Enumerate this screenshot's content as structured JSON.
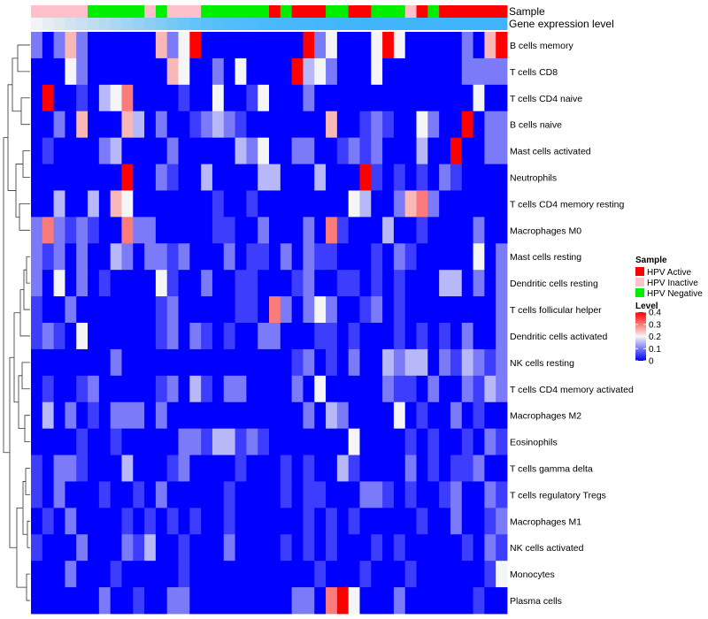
{
  "chart_data": {
    "type": "heatmap",
    "annotation_tracks": [
      "Sample",
      "Gene expression level"
    ],
    "rows": [
      "B cells memory",
      "T cells CD8",
      "T cells CD4 naive",
      "B cells naive",
      "Mast cells activated",
      "Neutrophils",
      "T cells CD4 memory resting",
      "Macrophages M0",
      "Mast cells resting",
      "Dendritic cells resting",
      "T cells follicular helper",
      "Dendritic cells activated",
      "NK cells resting",
      "T cells CD4 memory activated",
      "Macrophages M2",
      "Eosinophils",
      "T cells gamma delta",
      "T cells regulatory  Tregs",
      "Macrophages M1",
      "NK cells activated",
      "Monocytes",
      "Plasma cells"
    ],
    "sample_groups": [
      "I",
      "I",
      "I",
      "I",
      "I",
      "N",
      "N",
      "N",
      "N",
      "N",
      "I",
      "N",
      "I",
      "I",
      "I",
      "N",
      "N",
      "N",
      "N",
      "N",
      "N",
      "A",
      "N",
      "A",
      "A",
      "A",
      "N",
      "N",
      "A",
      "A",
      "N",
      "N",
      "N",
      "I",
      "A",
      "N",
      "A",
      "A",
      "A",
      "A",
      "A",
      "A"
    ],
    "values": [
      [
        0.1,
        0,
        0.1,
        0.25,
        0.1,
        0,
        0,
        0,
        0,
        0,
        0,
        0.25,
        0.1,
        0.2,
        0.4,
        0,
        0,
        0,
        0,
        0,
        0,
        0,
        0,
        0,
        0.4,
        0.1,
        0.2,
        0,
        0,
        0,
        0.2,
        0.4,
        0.2,
        0,
        0,
        0,
        0,
        0,
        0.1,
        0,
        0.25,
        0.4
      ],
      [
        0,
        0,
        0,
        0.2,
        0.1,
        0,
        0,
        0,
        0,
        0,
        0,
        0,
        0.25,
        0.2,
        0,
        0,
        0.1,
        0,
        0.2,
        0,
        0,
        0,
        0,
        0.4,
        0.15,
        0.2,
        0.1,
        0,
        0,
        0,
        0.2,
        0,
        0,
        0,
        0,
        0,
        0,
        0,
        0.1,
        0.1,
        0.1,
        0.1
      ],
      [
        0,
        0.4,
        0,
        0,
        0.05,
        0,
        0.15,
        0.2,
        0.3,
        0,
        0,
        0,
        0,
        0.05,
        0,
        0,
        0.2,
        0,
        0,
        0.05,
        0.2,
        0,
        0,
        0,
        0.1,
        0,
        0,
        0,
        0,
        0,
        0,
        0,
        0,
        0,
        0,
        0,
        0,
        0,
        0,
        0.2,
        0,
        0
      ],
      [
        0,
        0,
        0.1,
        0,
        0.25,
        0,
        0,
        0,
        0.25,
        0.15,
        0,
        0.1,
        0,
        0,
        0.05,
        0.1,
        0.15,
        0.1,
        0.05,
        0,
        0,
        0,
        0,
        0,
        0,
        0,
        0.25,
        0,
        0,
        0.05,
        0.1,
        0.05,
        0,
        0,
        0.2,
        0.1,
        0,
        0,
        0.4,
        0,
        0.1,
        0.1
      ],
      [
        0,
        0.05,
        0,
        0,
        0,
        0,
        0.1,
        0.15,
        0,
        0,
        0,
        0,
        0.1,
        0,
        0,
        0,
        0,
        0,
        0.15,
        0.1,
        0.2,
        0,
        0,
        0.1,
        0.1,
        0,
        0,
        0.05,
        0.1,
        0.05,
        0.1,
        0,
        0,
        0,
        0.15,
        0,
        0,
        0.4,
        0,
        0,
        0.1,
        0.1
      ],
      [
        0,
        0,
        0,
        0,
        0,
        0,
        0,
        0,
        0.4,
        0,
        0,
        0.1,
        0.05,
        0,
        0,
        0.15,
        0,
        0,
        0,
        0,
        0.15,
        0.15,
        0,
        0,
        0,
        0.15,
        0,
        0,
        0,
        0.4,
        0.05,
        0,
        0.05,
        0,
        0.05,
        0,
        0.1,
        0.05,
        0,
        0,
        0,
        0
      ],
      [
        0,
        0,
        0.15,
        0,
        0,
        0.15,
        0,
        0.25,
        0.2,
        0,
        0,
        0,
        0,
        0,
        0,
        0,
        0.05,
        0,
        0,
        0.05,
        0,
        0,
        0,
        0,
        0,
        0,
        0,
        0,
        0.2,
        0.15,
        0,
        0,
        0.1,
        0.25,
        0.3,
        0.1,
        0,
        0,
        0,
        0,
        0,
        0
      ],
      [
        0.1,
        0.3,
        0.1,
        0.05,
        0.1,
        0.05,
        0,
        0,
        0.3,
        0.1,
        0.1,
        0,
        0,
        0,
        0,
        0,
        0.05,
        0.05,
        0,
        0,
        0.1,
        0,
        0,
        0,
        0.1,
        0,
        0.3,
        0.05,
        0,
        0,
        0,
        0.15,
        0,
        0,
        0.05,
        0,
        0,
        0,
        0,
        0.1,
        0,
        0
      ],
      [
        0.1,
        0.05,
        0.1,
        0,
        0.1,
        0,
        0,
        0.15,
        0.1,
        0,
        0.1,
        0.1,
        0.05,
        0.1,
        0,
        0,
        0,
        0.1,
        0,
        0.05,
        0.05,
        0,
        0.1,
        0,
        0.1,
        0.05,
        0.05,
        0,
        0,
        0,
        0.05,
        0,
        0.1,
        0.05,
        0,
        0,
        0,
        0,
        0,
        0.2,
        0,
        0.1
      ],
      [
        0.1,
        0,
        0.2,
        0,
        0.1,
        0,
        0.05,
        0,
        0,
        0,
        0,
        0.2,
        0.05,
        0,
        0,
        0.1,
        0,
        0,
        0.05,
        0.05,
        0,
        0,
        0,
        0.05,
        0.1,
        0,
        0,
        0.05,
        0.05,
        0,
        0.05,
        0,
        0.05,
        0,
        0,
        0,
        0.15,
        0.15,
        0,
        0.1,
        0,
        0.1
      ],
      [
        0.05,
        0,
        0,
        0.1,
        0,
        0,
        0,
        0,
        0,
        0,
        0,
        0.05,
        0.1,
        0,
        0,
        0,
        0,
        0,
        0.05,
        0.05,
        0,
        0.3,
        0.1,
        0,
        0.1,
        0.2,
        0.1,
        0,
        0,
        0.05,
        0.1,
        0,
        0.05,
        0,
        0,
        0,
        0,
        0,
        0,
        0,
        0,
        0.1
      ],
      [
        0.05,
        0.1,
        0.05,
        0,
        0.2,
        0,
        0,
        0,
        0,
        0,
        0,
        0.05,
        0.1,
        0,
        0.1,
        0.05,
        0,
        0.05,
        0,
        0,
        0.1,
        0.1,
        0,
        0,
        0,
        0.05,
        0.05,
        0,
        0.05,
        0,
        0,
        0,
        0.05,
        0,
        0.05,
        0,
        0.05,
        0,
        0.1,
        0,
        0,
        0.1
      ],
      [
        0,
        0,
        0,
        0,
        0,
        0,
        0,
        0.1,
        0,
        0,
        0,
        0,
        0,
        0,
        0,
        0,
        0,
        0,
        0,
        0,
        0,
        0,
        0,
        0.05,
        0.1,
        0,
        0.05,
        0,
        0.1,
        0,
        0,
        0.15,
        0.1,
        0.15,
        0.15,
        0,
        0.1,
        0.05,
        0.15,
        0.1,
        0.05,
        0.1
      ],
      [
        0,
        0.05,
        0,
        0,
        0.05,
        0.1,
        0,
        0,
        0,
        0,
        0,
        0.05,
        0.1,
        0,
        0.15,
        0.05,
        0,
        0.1,
        0.1,
        0,
        0,
        0,
        0,
        0.1,
        0,
        0.2,
        0,
        0,
        0,
        0,
        0,
        0.1,
        0.05,
        0.05,
        0,
        0.1,
        0,
        0,
        0.1,
        0.05,
        0.15,
        0.1
      ],
      [
        0,
        0.15,
        0,
        0.1,
        0,
        0.05,
        0,
        0.1,
        0.1,
        0.1,
        0,
        0.1,
        0,
        0,
        0,
        0,
        0,
        0,
        0,
        0,
        0,
        0,
        0,
        0,
        0.1,
        0,
        0.15,
        0.1,
        0,
        0,
        0,
        0,
        0.2,
        0,
        0.05,
        0,
        0,
        0.1,
        0,
        0.05,
        0,
        0
      ],
      [
        0,
        0,
        0,
        0,
        0.05,
        0,
        0,
        0.05,
        0,
        0,
        0,
        0,
        0,
        0.1,
        0.1,
        0.05,
        0.15,
        0.15,
        0.05,
        0.1,
        0.05,
        0,
        0,
        0,
        0,
        0,
        0,
        0,
        0.2,
        0,
        0,
        0,
        0,
        0.05,
        0,
        0.05,
        0,
        0,
        0.05,
        0,
        0.1,
        0.05
      ],
      [
        0.05,
        0,
        0.1,
        0.1,
        0.05,
        0,
        0,
        0,
        0.15,
        0,
        0,
        0,
        0.05,
        0.1,
        0,
        0,
        0,
        0,
        0.05,
        0,
        0,
        0,
        0.05,
        0,
        0.05,
        0,
        0,
        0.15,
        0.05,
        0,
        0,
        0,
        0,
        0.1,
        0,
        0.05,
        0,
        0.05,
        0.05,
        0.1,
        0,
        0
      ],
      [
        0.05,
        0,
        0.1,
        0,
        0,
        0,
        0.05,
        0,
        0,
        0.05,
        0,
        0.1,
        0,
        0,
        0,
        0,
        0,
        0.05,
        0,
        0,
        0,
        0,
        0.05,
        0,
        0.05,
        0.05,
        0,
        0,
        0,
        0.1,
        0.1,
        0.05,
        0,
        0.05,
        0,
        0,
        0.05,
        0.1,
        0,
        0,
        0.1,
        0.05
      ],
      [
        0,
        0.05,
        0,
        0.1,
        0,
        0,
        0,
        0,
        0.05,
        0,
        0.05,
        0,
        0.05,
        0,
        0.05,
        0,
        0,
        0.05,
        0,
        0,
        0,
        0,
        0,
        0,
        0.05,
        0,
        0.05,
        0,
        0.05,
        0,
        0,
        0,
        0,
        0,
        0.05,
        0,
        0,
        0.1,
        0,
        0,
        0.05,
        0.1
      ],
      [
        0.05,
        0,
        0,
        0,
        0.1,
        0,
        0,
        0,
        0.1,
        0.05,
        0.15,
        0,
        0,
        0.05,
        0,
        0,
        0,
        0.1,
        0,
        0,
        0,
        0,
        0.05,
        0,
        0.05,
        0,
        0.05,
        0,
        0,
        0,
        0.05,
        0,
        0.05,
        0,
        0,
        0,
        0,
        0,
        0.05,
        0,
        0.1,
        0.05
      ],
      [
        0,
        0,
        0,
        0.1,
        0,
        0,
        0,
        0.05,
        0,
        0,
        0,
        0,
        0,
        0.05,
        0,
        0,
        0,
        0,
        0,
        0,
        0,
        0,
        0,
        0,
        0,
        0.05,
        0,
        0,
        0,
        0.05,
        0,
        0,
        0,
        0.05,
        0,
        0,
        0,
        0,
        0,
        0,
        0.05,
        0.2
      ],
      [
        0,
        0,
        0,
        0,
        0,
        0,
        0.1,
        0,
        0,
        0.05,
        0,
        0,
        0.1,
        0.1,
        0,
        0,
        0,
        0,
        0,
        0,
        0,
        0,
        0,
        0.1,
        0.1,
        0,
        0.3,
        0.4,
        0.2,
        0,
        0,
        0,
        0.1,
        0,
        0,
        0,
        0,
        0,
        0,
        0.05,
        0,
        0
      ]
    ],
    "gene_expression_band": [
      "#f0f4f6",
      "#e6eef3",
      "#dce9f1",
      "#d2e4f0",
      "#c8e0ef",
      "#beddef",
      "#b4daf0",
      "#aad7f1",
      "#a0d4f2",
      "#96d1f3",
      "#8cceF4",
      "#82cbf5",
      "#78c8f6",
      "#6ec5f7",
      "#64c3f8",
      "#5ac1f9",
      "#56bff9",
      "#52bdf9",
      "#50bcfa",
      "#4ebbfa",
      "#4cbafa",
      "#4ab9fa",
      "#48b8fa",
      "#46b8fa",
      "#45b7fa",
      "#44b7fa",
      "#44b6fa",
      "#43b6fa",
      "#43b6fa",
      "#42b5fa",
      "#42b5fa",
      "#42b5fa",
      "#41b5fa",
      "#41b5fa",
      "#41b4fa",
      "#41b4fa",
      "#40b4fa",
      "#40b4fa",
      "#40b4fa",
      "#40b4fa",
      "#40b4fa",
      "#40b4fa"
    ],
    "legend": {
      "sample": {
        "title": "Sample",
        "entries": [
          {
            "label": "HPV Active",
            "key": "A",
            "color": "#ff0000"
          },
          {
            "label": "HPV Inactive",
            "key": "I",
            "color": "#ffc0cb"
          },
          {
            "label": "HPV Negative",
            "key": "N",
            "color": "#00ee00"
          }
        ]
      },
      "level": {
        "title": "Level",
        "ticks": [
          "0.4",
          "0.3",
          "0.2",
          "0.1",
          "0"
        ],
        "range": [
          0,
          0.4
        ]
      }
    },
    "colors": {
      "low": "#0000ff",
      "mid": "#f5f5f5",
      "high": "#ff0000"
    }
  }
}
